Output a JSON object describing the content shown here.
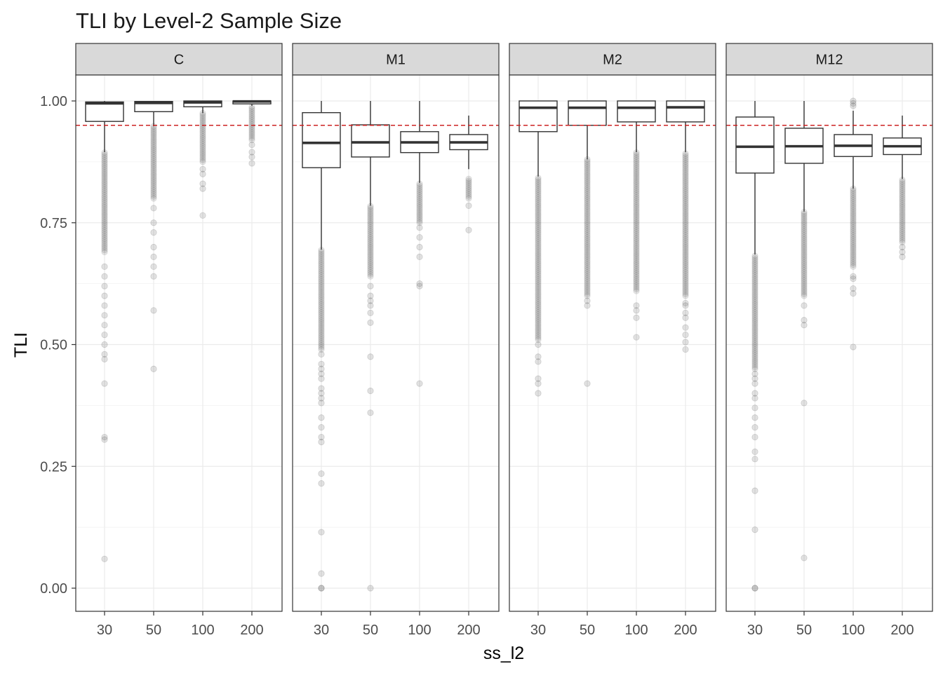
{
  "chart_data": {
    "type": "box",
    "title": "TLI by Level-2 Sample Size",
    "xlabel": "ss_l2",
    "ylabel": "TLI",
    "categories": [
      "30",
      "50",
      "100",
      "200"
    ],
    "ylim": [
      -0.05,
      1.1
    ],
    "yticks": [
      "0.00",
      "0.25",
      "0.50",
      "0.75",
      "1.00"
    ],
    "reference_line": {
      "y": 0.95,
      "color": "#cc2222",
      "style": "dashed"
    },
    "grid": true,
    "colors": {
      "strip_fill": "#d9d9d9",
      "box_line": "#333333",
      "outlier": "#333333",
      "grid": "#ebebeb"
    },
    "panels": [
      {
        "label": "C",
        "boxes": [
          {
            "x": "30",
            "q1": 0.958,
            "median": 0.995,
            "q3": 0.998,
            "whisker_low": 0.895,
            "whisker_high": 1.0,
            "outlier_band": [
              0.69,
              0.895
            ],
            "outliers": [
              0.66,
              0.64,
              0.62,
              0.6,
              0.58,
              0.56,
              0.54,
              0.52,
              0.5,
              0.48,
              0.47,
              0.42,
              0.31,
              0.305,
              0.06
            ]
          },
          {
            "x": "50",
            "q1": 0.978,
            "median": 0.996,
            "q3": 0.999,
            "whisker_low": 0.948,
            "whisker_high": 1.0,
            "outlier_band": [
              0.8,
              0.948
            ],
            "outliers": [
              0.78,
              0.75,
              0.73,
              0.7,
              0.68,
              0.66,
              0.64,
              0.57,
              0.45
            ]
          },
          {
            "x": "100",
            "q1": 0.988,
            "median": 0.997,
            "q3": 1.0,
            "whisker_low": 0.975,
            "whisker_high": 1.0,
            "outlier_band": [
              0.875,
              0.975
            ],
            "outliers": [
              0.86,
              0.85,
              0.83,
              0.82,
              0.765
            ]
          },
          {
            "x": "200",
            "q1": 0.994,
            "median": 0.999,
            "q3": 1.0,
            "whisker_low": 0.99,
            "whisker_high": 1.0,
            "outlier_band": [
              0.92,
              0.99
            ],
            "outliers": [
              0.91,
              0.895,
              0.885,
              0.872
            ]
          }
        ]
      },
      {
        "label": "M1",
        "boxes": [
          {
            "x": "30",
            "q1": 0.863,
            "median": 0.914,
            "q3": 0.976,
            "whisker_low": 0.695,
            "whisker_high": 1.0,
            "outlier_band": [
              0.49,
              0.695
            ],
            "outliers": [
              0.48,
              0.46,
              0.45,
              0.44,
              0.43,
              0.41,
              0.4,
              0.39,
              0.38,
              0.35,
              0.33,
              0.31,
              0.3,
              0.235,
              0.215,
              0.115,
              0.03,
              0.0,
              0.0
            ]
          },
          {
            "x": "50",
            "q1": 0.885,
            "median": 0.915,
            "q3": 0.951,
            "whisker_low": 0.785,
            "whisker_high": 1.0,
            "outlier_band": [
              0.64,
              0.785
            ],
            "outliers": [
              0.62,
              0.6,
              0.59,
              0.58,
              0.565,
              0.545,
              0.475,
              0.405,
              0.36,
              0.0
            ]
          },
          {
            "x": "100",
            "q1": 0.894,
            "median": 0.915,
            "q3": 0.937,
            "whisker_low": 0.832,
            "whisker_high": 1.0,
            "outlier_band": [
              0.75,
              0.832
            ],
            "outliers": [
              0.74,
              0.72,
              0.7,
              0.68,
              0.625,
              0.62,
              0.42
            ]
          },
          {
            "x": "200",
            "q1": 0.9,
            "median": 0.915,
            "q3": 0.931,
            "whisker_low": 0.86,
            "whisker_high": 0.97,
            "outlier_band": [
              0.8,
              0.84
            ],
            "outliers": [
              0.785,
              0.735
            ]
          }
        ]
      },
      {
        "label": "M2",
        "boxes": [
          {
            "x": "30",
            "q1": 0.937,
            "median": 0.986,
            "q3": 1.0,
            "whisker_low": 0.845,
            "whisker_high": 1.0,
            "outlier_band": [
              0.51,
              0.845
            ],
            "outliers": [
              0.5,
              0.475,
              0.465,
              0.43,
              0.42,
              0.4
            ]
          },
          {
            "x": "50",
            "q1": 0.95,
            "median": 0.986,
            "q3": 1.0,
            "whisker_low": 0.88,
            "whisker_high": 1.0,
            "outlier_band": [
              0.6,
              0.88
            ],
            "outliers": [
              0.59,
              0.58,
              0.42
            ]
          },
          {
            "x": "100",
            "q1": 0.957,
            "median": 0.986,
            "q3": 1.0,
            "whisker_low": 0.895,
            "whisker_high": 1.0,
            "outlier_band": [
              0.61,
              0.895
            ],
            "outliers": [
              0.58,
              0.57,
              0.555,
              0.515
            ]
          },
          {
            "x": "200",
            "q1": 0.957,
            "median": 0.987,
            "q3": 1.0,
            "whisker_low": 0.895,
            "whisker_high": 1.0,
            "outlier_band": [
              0.6,
              0.895
            ],
            "outliers": [
              0.585,
              0.58,
              0.565,
              0.555,
              0.535,
              0.52,
              0.505,
              0.49
            ]
          }
        ]
      },
      {
        "label": "M12",
        "boxes": [
          {
            "x": "30",
            "q1": 0.852,
            "median": 0.906,
            "q3": 0.967,
            "whisker_low": 0.685,
            "whisker_high": 1.0,
            "outlier_band": [
              0.45,
              0.685
            ],
            "outliers": [
              0.44,
              0.43,
              0.42,
              0.4,
              0.39,
              0.37,
              0.35,
              0.33,
              0.31,
              0.28,
              0.265,
              0.2,
              0.12,
              0.0,
              0.0
            ]
          },
          {
            "x": "50",
            "q1": 0.872,
            "median": 0.907,
            "q3": 0.944,
            "whisker_low": 0.773,
            "whisker_high": 1.0,
            "outlier_band": [
              0.6,
              0.773
            ],
            "outliers": [
              0.58,
              0.55,
              0.54,
              0.38,
              0.062
            ]
          },
          {
            "x": "100",
            "q1": 0.886,
            "median": 0.908,
            "q3": 0.931,
            "whisker_low": 0.82,
            "whisker_high": 0.98,
            "outlier_band": [
              0.66,
              0.82
            ],
            "outliers": [
              0.64,
              0.635,
              0.615,
              0.605,
              0.495,
              1.0,
              0.995,
              0.99
            ]
          },
          {
            "x": "200",
            "q1": 0.89,
            "median": 0.907,
            "q3": 0.924,
            "whisker_low": 0.84,
            "whisker_high": 0.97,
            "outlier_band": [
              0.71,
              0.84
            ],
            "outliers": [
              0.7,
              0.69,
              0.68
            ]
          }
        ]
      }
    ]
  }
}
